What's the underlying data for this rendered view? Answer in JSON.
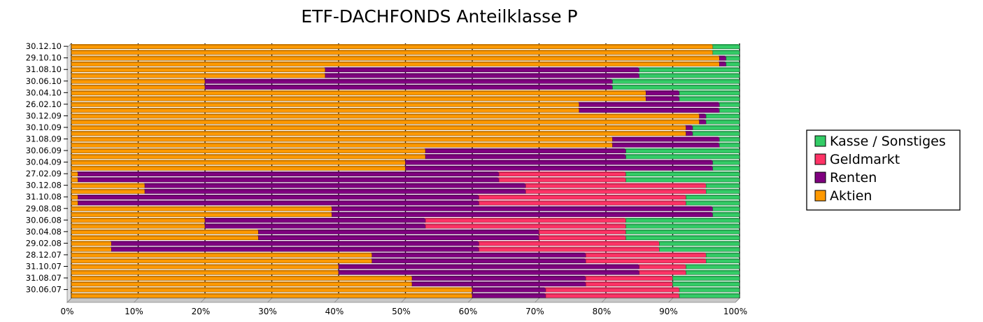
{
  "chart_data": {
    "type": "bar",
    "orientation": "horizontal",
    "stacked": "percent",
    "title": "ETF-DACHFONDS Anteilklasse P",
    "xlim": [
      0,
      100
    ],
    "x_ticks": [
      "0%",
      "10%",
      "20%",
      "30%",
      "40%",
      "50%",
      "60%",
      "70%",
      "80%",
      "90%",
      "100%"
    ],
    "grid": true,
    "legend_position": "right",
    "categories": [
      "30.12.10",
      "29.10.10",
      "31.08.10",
      "30.06.10",
      "30.04.10",
      "26.02.10",
      "30.12.09",
      "30.10.09",
      "31.08.09",
      "30.06.09",
      "30.04.09",
      "27.02.09",
      "30.12.08",
      "31.10.08",
      "29.08.08",
      "30.06.08",
      "30.04.08",
      "29.02.08",
      "28.12.07",
      "31.10.07",
      "31.08.07",
      "30.06.07"
    ],
    "series": [
      {
        "name": "Aktien",
        "color": "#ff9900",
        "values": [
          96,
          97,
          38,
          20,
          86,
          76,
          94,
          92,
          81,
          53,
          50,
          1,
          11,
          1,
          39,
          20,
          28,
          6,
          45,
          40,
          51,
          60
        ]
      },
      {
        "name": "Renten",
        "color": "#800080",
        "values": [
          0,
          1,
          47,
          61,
          5,
          21,
          1,
          1,
          16,
          30,
          46,
          63,
          57,
          60,
          57,
          33,
          42,
          55,
          32,
          45,
          26,
          11
        ]
      },
      {
        "name": "Geldmarkt",
        "color": "#ff3366",
        "values": [
          0,
          0,
          0,
          0,
          0,
          0,
          0,
          0,
          0,
          0,
          0,
          19,
          27,
          31,
          0,
          30,
          13,
          27,
          18,
          7,
          13,
          20
        ]
      },
      {
        "name": "Kasse / Sonstiges",
        "color": "#33cc66",
        "values": [
          4,
          2,
          15,
          19,
          9,
          3,
          5,
          7,
          3,
          17,
          4,
          17,
          5,
          8,
          4,
          17,
          17,
          12,
          5,
          8,
          10,
          9
        ]
      }
    ],
    "legend": [
      "Kasse / Sonstiges",
      "Geldmarkt",
      "Renten",
      "Aktien"
    ]
  }
}
